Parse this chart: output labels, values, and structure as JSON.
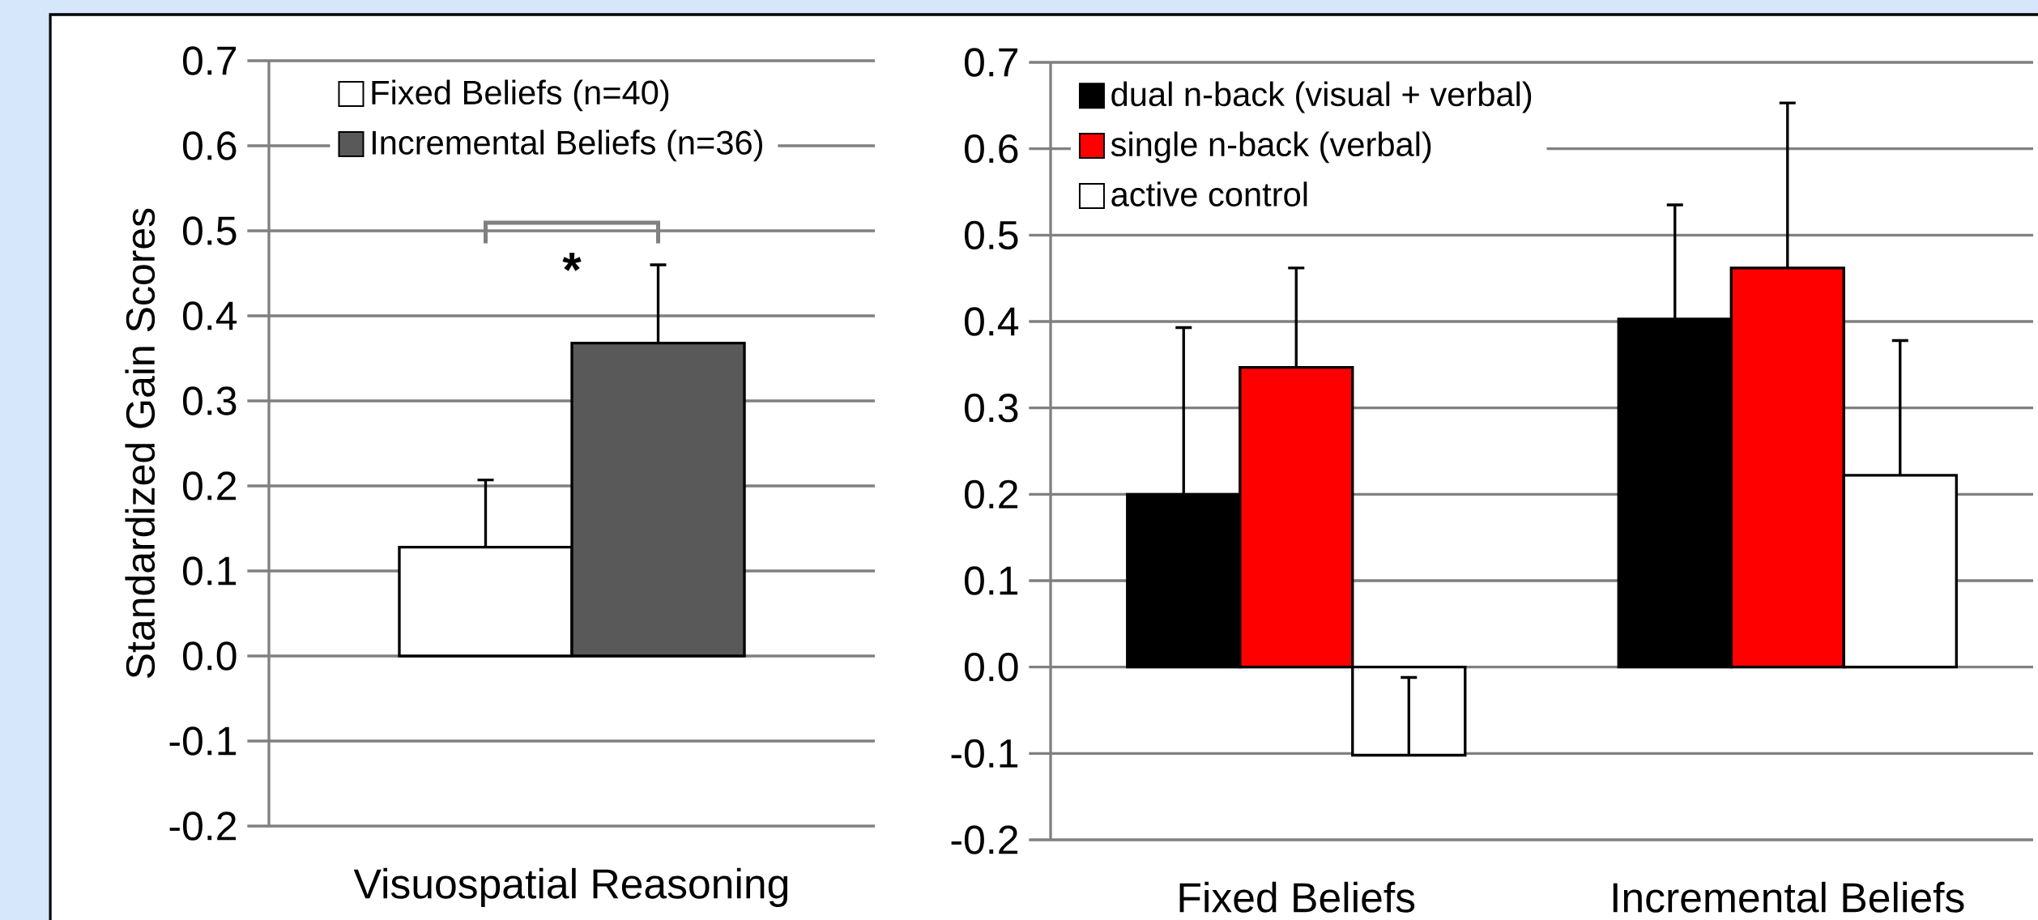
{
  "chart_data": [
    {
      "type": "bar",
      "ylabel": "Standardized Gain Scores",
      "categories": [
        "Visuospatial Reasoning"
      ],
      "series": [
        {
          "name": "Fixed Beliefs (n=40)",
          "color": "#ffffff",
          "values": [
            0.128
          ],
          "errors": [
            [
              0.128,
              0.207
            ]
          ]
        },
        {
          "name": "Incremental Beliefs (n=36)",
          "color": "#595959",
          "values": [
            0.368
          ],
          "errors": [
            [
              0.368,
              0.46
            ]
          ]
        }
      ],
      "ylim": [
        -0.2,
        0.7
      ],
      "yticks": [
        {
          "value": -0.2,
          "label": "-0.2"
        },
        {
          "value": -0.1,
          "label": "-0.1"
        },
        {
          "value": 0,
          "label": "0.0"
        },
        {
          "value": 0.1,
          "label": "0.1"
        },
        {
          "value": 0.2,
          "label": "0.2"
        },
        {
          "value": 0.3,
          "label": "0.3"
        },
        {
          "value": 0.4,
          "label": "0.4"
        },
        {
          "value": 0.5,
          "label": "0.5"
        },
        {
          "value": 0.6,
          "label": "0.6"
        },
        {
          "value": 0.7,
          "label": "0.7"
        }
      ],
      "grid": "y",
      "legend": "top",
      "annotations": [
        "*"
      ]
    },
    {
      "type": "bar",
      "categories": [
        "Fixed Beliefs",
        "Incremental Beliefs"
      ],
      "series": [
        {
          "name": "dual n-back (visual + verbal)",
          "color": "#000000",
          "values": [
            0.2,
            0.403
          ],
          "errors": [
            [
              0.2,
              0.393
            ],
            [
              0.403,
              0.535
            ]
          ]
        },
        {
          "name": "single n-back (verbal)",
          "color": "#ff0000",
          "values": [
            0.347,
            0.462
          ],
          "errors": [
            [
              0.347,
              0.462
            ],
            [
              0.462,
              0.653
            ]
          ]
        },
        {
          "name": "active control",
          "color": "#ffffff",
          "values": [
            -0.102,
            0.222
          ],
          "errors": [
            [
              -0.102,
              -0.012
            ],
            [
              0.222,
              0.378
            ]
          ]
        }
      ],
      "ylim": [
        -0.2,
        0.7
      ],
      "yticks": [
        {
          "value": -0.2,
          "label": "-0.2"
        },
        {
          "value": -0.1,
          "label": "-0.1"
        },
        {
          "value": 0,
          "label": "0.0"
        },
        {
          "value": 0.1,
          "label": "0.1"
        },
        {
          "value": 0.2,
          "label": "0.2"
        },
        {
          "value": 0.3,
          "label": "0.3"
        },
        {
          "value": 0.4,
          "label": "0.4"
        },
        {
          "value": 0.5,
          "label": "0.5"
        },
        {
          "value": 0.6,
          "label": "0.6"
        },
        {
          "value": 0.7,
          "label": "0.7"
        }
      ],
      "grid": "y",
      "legend": "top left"
    }
  ]
}
